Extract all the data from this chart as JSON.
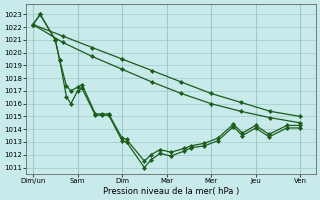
{
  "background_color": "#c8eaea",
  "grid_color": "#a0c8c8",
  "line_color": "#1a5c1a",
  "xlabel": "Pression niveau de la mer( hPa )",
  "ylim": [
    1010.5,
    1023.8
  ],
  "yticks": [
    1011,
    1012,
    1013,
    1014,
    1015,
    1016,
    1017,
    1018,
    1019,
    1020,
    1021,
    1022,
    1023
  ],
  "xtick_labels": [
    "Dim/un",
    "Sam",
    "Dim",
    "Mar",
    "Mer",
    "Jeu",
    "Ven"
  ],
  "smooth_line1_x": [
    0.0,
    0.67,
    1.33,
    2.0,
    2.67,
    3.33,
    4.0,
    4.67,
    5.33,
    6.0
  ],
  "smooth_line1_y": [
    1022.2,
    1021.3,
    1020.4,
    1019.5,
    1018.6,
    1017.7,
    1016.8,
    1016.1,
    1015.4,
    1015.0
  ],
  "smooth_line2_x": [
    0.0,
    0.67,
    1.33,
    2.0,
    2.67,
    3.33,
    4.0,
    4.67,
    5.33,
    6.0
  ],
  "smooth_line2_y": [
    1022.2,
    1020.8,
    1019.7,
    1018.7,
    1017.7,
    1016.8,
    1016.0,
    1015.4,
    1014.9,
    1014.5
  ],
  "jagged_line1_x": [
    0.0,
    0.16,
    0.5,
    0.6,
    0.75,
    0.85,
    1.0,
    1.1,
    1.4,
    1.55,
    1.7,
    2.0,
    2.1,
    2.5,
    2.65,
    2.85,
    3.1,
    3.4,
    3.55,
    3.85,
    4.15,
    4.5,
    4.7,
    5.0,
    5.3,
    5.7,
    6.0
  ],
  "jagged_line1_y": [
    1022.2,
    1023.0,
    1021.0,
    1019.4,
    1016.55,
    1016.0,
    1017.0,
    1017.2,
    1015.1,
    1015.1,
    1015.1,
    1013.1,
    1013.0,
    1011.0,
    1011.6,
    1012.1,
    1011.9,
    1012.3,
    1012.55,
    1012.7,
    1013.1,
    1014.2,
    1013.5,
    1014.1,
    1013.4,
    1014.1,
    1014.1
  ],
  "jagged_line2_x": [
    0.0,
    0.16,
    0.5,
    0.6,
    0.75,
    0.85,
    1.0,
    1.1,
    1.4,
    1.55,
    1.7,
    2.0,
    2.1,
    2.5,
    2.65,
    2.85,
    3.1,
    3.4,
    3.55,
    3.85,
    4.15,
    4.5,
    4.7,
    5.0,
    5.3,
    5.7,
    6.0
  ],
  "jagged_line2_y": [
    1022.2,
    1023.0,
    1021.0,
    1019.4,
    1017.4,
    1017.0,
    1017.3,
    1017.5,
    1015.2,
    1015.2,
    1015.2,
    1013.3,
    1013.2,
    1011.5,
    1012.0,
    1012.4,
    1012.2,
    1012.5,
    1012.7,
    1012.9,
    1013.3,
    1014.4,
    1013.7,
    1014.3,
    1013.6,
    1014.3,
    1014.3
  ]
}
